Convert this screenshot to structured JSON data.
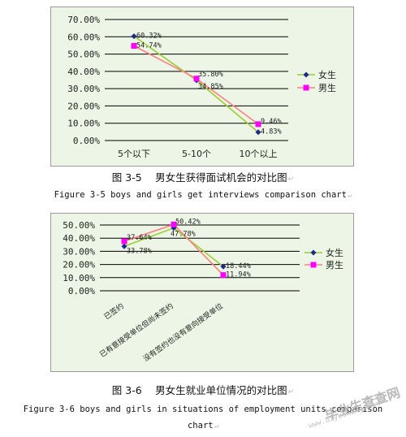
{
  "chart_data": [
    {
      "type": "line",
      "categories": [
        "5个以下",
        "5-10个",
        "10个以上"
      ],
      "series": [
        {
          "name": "女生",
          "values": [
            60.32,
            34.85,
            4.83
          ],
          "labels": [
            "60.32%",
            "34.85%",
            "4.83%"
          ],
          "color": "#1a2a8a",
          "line_color": "#9acd32",
          "marker": "diamond"
        },
        {
          "name": "男生",
          "values": [
            54.74,
            35.8,
            9.46
          ],
          "labels": [
            "54.74%",
            "35.80%",
            "9.46%"
          ],
          "color": "#ff00ff",
          "line_color": "#ff8080",
          "marker": "square"
        }
      ],
      "ylim": [
        0,
        70
      ],
      "yticks": [
        "0.00%",
        "10.00%",
        "20.00%",
        "30.00%",
        "40.00%",
        "50.00%",
        "60.00%",
        "70.00%"
      ],
      "grid": true,
      "legend": "right",
      "title": "",
      "xlabel": "",
      "ylabel": ""
    },
    {
      "type": "line",
      "categories": [
        "已签约",
        "已有意接受单位但尚未签约",
        "没有签约也没有意向接受单位"
      ],
      "series": [
        {
          "name": "女生",
          "values": [
            33.78,
            47.78,
            18.44
          ],
          "labels": [
            "33.78%",
            "47.78%",
            "18.44%"
          ],
          "color": "#1a2a8a",
          "line_color": "#9acd32",
          "marker": "diamond"
        },
        {
          "name": "男生",
          "values": [
            37.64,
            50.42,
            11.94
          ],
          "labels": [
            "37.64%",
            "50.42%",
            "11.94%"
          ],
          "color": "#ff00ff",
          "line_color": "#ff8080",
          "marker": "square"
        }
      ],
      "ylim": [
        0,
        50
      ],
      "yticks": [
        "0.00%",
        "10.00%",
        "20.00%",
        "30.00%",
        "40.00%",
        "50.00%"
      ],
      "grid": true,
      "legend": "right",
      "title": "",
      "xlabel": "",
      "ylabel": ""
    }
  ],
  "captions": {
    "fig1_cn": "图 3-5　 男女生获得面试机会的对比图",
    "fig1_en": "Figure 3-5 boys and girls get interviews comparison chart",
    "fig2_cn": "图 3-6　 男女生就业单位情况的对比图",
    "fig2_en_line1": "Figure 3-6 boys and girls in situations of employment units comparison",
    "fig2_en_line2": "chart",
    "return_mark": "↵"
  },
  "watermark": {
    "text": "毕业生查查网",
    "url": "www.biyesheng.com"
  }
}
